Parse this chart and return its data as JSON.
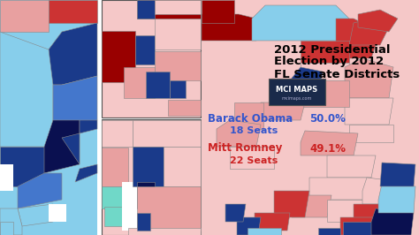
{
  "title_line1": "2012 Presidential",
  "title_line2": "Election by 2012",
  "title_line3": "FL Senate Districts",
  "title_fontsize": 9.5,
  "title_color": "#000000",
  "obama_label": "Barack Obama",
  "obama_seats": "18 Seats",
  "obama_pct": "50.0%",
  "obama_color": "#3355cc",
  "romney_label": "Mitt Romney",
  "romney_seats": "22 Seats",
  "romney_pct": "49.1%",
  "romney_color": "#cc2222",
  "logo_text": "MCI MAPS",
  "logo_subtext": "mcimaps.com",
  "logo_bg": "#1a2a4a",
  "logo_text_color": "#ffffff",
  "bg_color": "#ffffff",
  "color_light_blue": "#87CEEB",
  "color_med_blue": "#4477cc",
  "color_dark_blue": "#1a3a8a",
  "color_navy": "#0a1050",
  "color_lt_cyan": "#70d8c8",
  "color_pink": "#e8a0a0",
  "color_lt_pink": "#f5c8c8",
  "color_red": "#cc3333",
  "color_dark_red": "#990000",
  "color_white": "#ffffff",
  "color_border": "#888888"
}
